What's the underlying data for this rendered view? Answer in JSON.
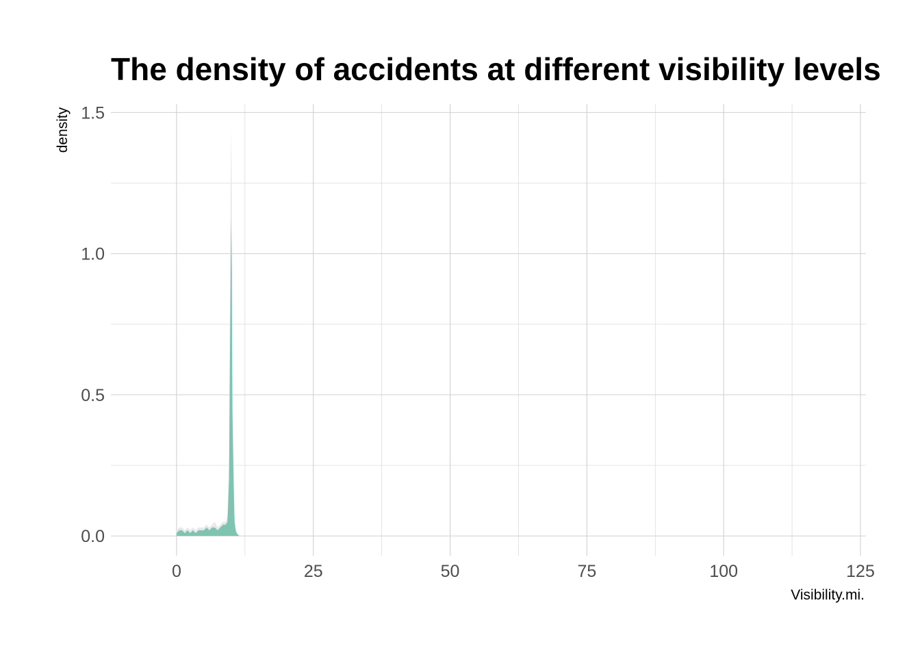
{
  "chart_data": {
    "type": "area",
    "title": "The density of accidents at different visibility levels",
    "xlabel": "Visibility.mi.",
    "ylabel": "density",
    "xlim": [
      -12,
      126
    ],
    "ylim": [
      -0.07,
      1.53
    ],
    "x_ticks": [
      0,
      25,
      50,
      75,
      100,
      125
    ],
    "x_tick_labels": [
      "0",
      "25",
      "50",
      "75",
      "100",
      "125"
    ],
    "y_ticks": [
      0.0,
      0.5,
      1.0,
      1.5
    ],
    "y_tick_labels": [
      "0.0",
      "0.5",
      "1.0",
      "1.5"
    ],
    "grid": true,
    "legend": "none",
    "colors": {
      "fill": "#7fc3b1",
      "ghost_fill": "#e8e8e8",
      "grid": "#d0d0d0"
    },
    "series": [
      {
        "x": [
          0,
          0.5,
          1.0,
          1.5,
          2.0,
          2.5,
          3.0,
          3.5,
          4.0,
          4.5,
          5.0,
          5.5,
          6.0,
          6.5,
          7.0,
          7.5,
          8.0,
          8.5,
          9.0,
          9.3,
          9.6,
          9.8,
          9.9,
          10.0,
          10.1,
          10.2,
          10.4,
          10.6,
          10.8,
          11.0,
          11.2,
          11.5
        ],
        "values": [
          0.01,
          0.02,
          0.02,
          0.01,
          0.02,
          0.01,
          0.02,
          0.01,
          0.02,
          0.02,
          0.02,
          0.03,
          0.02,
          0.03,
          0.03,
          0.02,
          0.03,
          0.04,
          0.04,
          0.05,
          0.2,
          0.73,
          0.94,
          1.12,
          0.94,
          0.45,
          0.22,
          0.05,
          0.02,
          0.01,
          0.005,
          0.0
        ]
      },
      {
        "x": [
          0,
          0.5,
          1.0,
          1.5,
          2.0,
          2.5,
          3.0,
          3.5,
          4.0,
          4.5,
          5.0,
          5.5,
          6.0,
          6.5,
          7.0,
          7.5,
          8.0,
          8.5,
          9.0,
          9.3,
          9.6,
          9.8,
          9.9,
          10.0,
          10.1,
          10.2,
          10.4,
          10.6,
          10.8,
          11.0,
          11.2,
          11.5
        ],
        "values": [
          0.02,
          0.03,
          0.03,
          0.02,
          0.03,
          0.02,
          0.03,
          0.02,
          0.03,
          0.03,
          0.03,
          0.04,
          0.03,
          0.04,
          0.05,
          0.03,
          0.04,
          0.05,
          0.05,
          0.07,
          0.28,
          1.0,
          1.28,
          1.45,
          1.2,
          0.6,
          0.28,
          0.07,
          0.03,
          0.01,
          0.005,
          0.0
        ]
      }
    ]
  }
}
